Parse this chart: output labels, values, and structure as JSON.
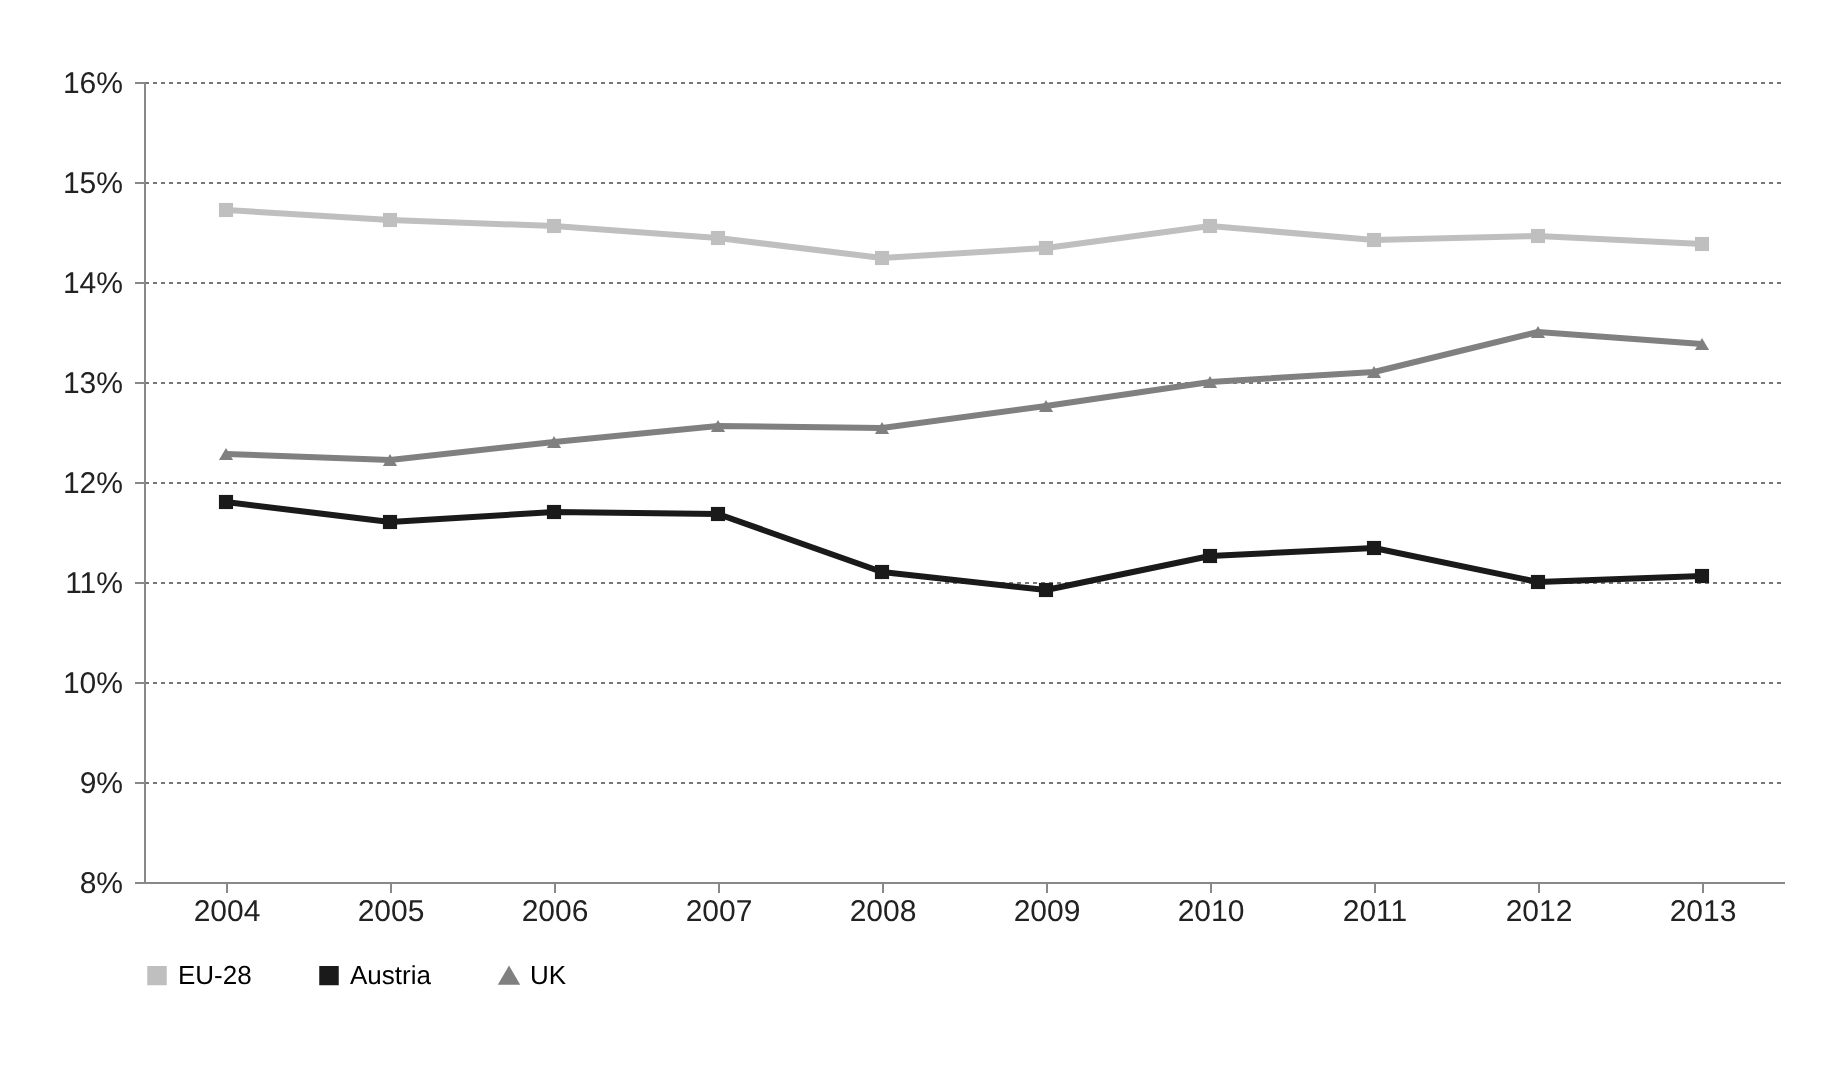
{
  "chart_data": {
    "type": "line",
    "categories": [
      "2004",
      "2005",
      "2006",
      "2007",
      "2008",
      "2009",
      "2010",
      "2011",
      "2012",
      "2013"
    ],
    "series": [
      {
        "name": "EU-28",
        "color": "#bfbfbf",
        "marker": "square",
        "values": [
          14.72,
          14.62,
          14.56,
          14.44,
          14.24,
          14.34,
          14.56,
          14.42,
          14.46,
          14.38
        ]
      },
      {
        "name": "Austria",
        "color": "#1a1a1a",
        "marker": "square",
        "values": [
          11.8,
          11.6,
          11.7,
          11.68,
          11.1,
          10.92,
          11.26,
          11.34,
          11.0,
          11.06
        ]
      },
      {
        "name": "UK",
        "color": "#808080",
        "marker": "triangle",
        "values": [
          12.28,
          12.22,
          12.4,
          12.56,
          12.54,
          12.76,
          13.0,
          13.1,
          13.5,
          13.38
        ]
      }
    ],
    "ylim": [
      8,
      16
    ],
    "yticks": [
      {
        "value": 8,
        "label": "8%"
      },
      {
        "value": 9,
        "label": "9%"
      },
      {
        "value": 10,
        "label": "10%"
      },
      {
        "value": 11,
        "label": "11%"
      },
      {
        "value": 12,
        "label": "12%"
      },
      {
        "value": 13,
        "label": "13%"
      },
      {
        "value": 14,
        "label": "14%"
      },
      {
        "value": 15,
        "label": "15%"
      },
      {
        "value": 16,
        "label": "16%"
      }
    ],
    "grid": "y",
    "legend": "bottom",
    "line_style": "solid"
  }
}
